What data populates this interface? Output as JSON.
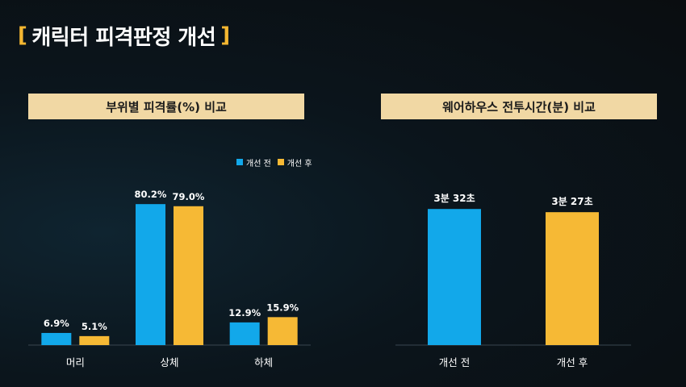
{
  "page": {
    "bracket_open": "[",
    "title": "캐릭터 피격판정 개선",
    "bracket_close": "]",
    "accent_color": "#f5b731"
  },
  "colors": {
    "before": "#12a8ea",
    "after": "#f6b935"
  },
  "chart_data": [
    {
      "type": "bar",
      "title": "부위별 피격률(%) 비교",
      "categories": [
        "머리",
        "상체",
        "하체"
      ],
      "series": [
        {
          "name": "개선 전",
          "values": [
            6.9,
            80.2,
            12.9
          ],
          "labels": [
            "6.9%",
            "80.2%",
            "12.9%"
          ]
        },
        {
          "name": "개선 후",
          "values": [
            5.1,
            79.0,
            15.9
          ],
          "labels": [
            "5.1%",
            "79.0%",
            "15.9%"
          ]
        }
      ],
      "ylim": [
        0,
        100
      ],
      "legend": "top-right",
      "grid": false
    },
    {
      "type": "bar",
      "title": "웨어하우스 전투시간(분) 비교",
      "categories": [
        "개선 전",
        "개선 후"
      ],
      "values": [
        3.533,
        3.45
      ],
      "labels": [
        "3분 32초",
        "3분 27초"
      ],
      "ylim": [
        0,
        4.5
      ],
      "grid": false
    }
  ]
}
